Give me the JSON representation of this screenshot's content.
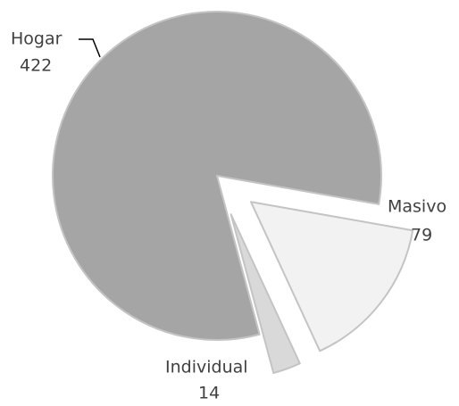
{
  "chart_data": {
    "type": "pie",
    "categories": [
      "Hogar",
      "Masivo",
      "Individual"
    ],
    "values": [
      422,
      79,
      14
    ],
    "colors": [
      "#a5a5a5",
      "#f2f2f2",
      "#d9d9d9"
    ]
  }
}
